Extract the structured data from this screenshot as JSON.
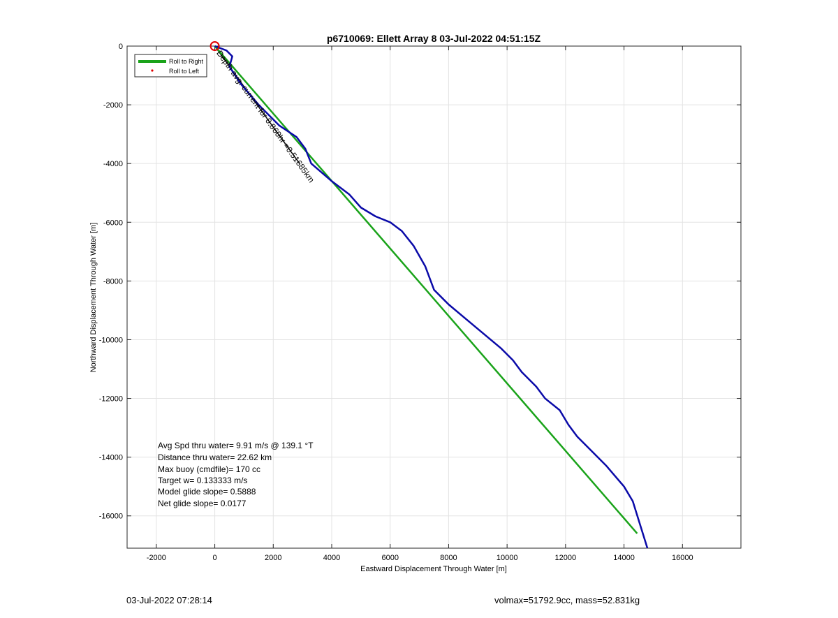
{
  "chart_data": {
    "type": "line",
    "title": "p6710069: Ellett Array 8 03-Jul-2022 04:51:15Z",
    "xlabel": "Eastward Displacement Through Water [m]",
    "ylabel": "Northward Displacement Through Water [m]",
    "xlim": [
      -3000,
      18000
    ],
    "ylim": [
      -17100,
      0
    ],
    "x_ticks": [
      -2000,
      0,
      2000,
      4000,
      6000,
      8000,
      10000,
      12000,
      14000,
      16000
    ],
    "y_ticks": [
      0,
      -2000,
      -4000,
      -6000,
      -8000,
      -10000,
      -12000,
      -14000,
      -16000
    ],
    "grid": true,
    "legend_position": "top-left",
    "legend": [
      {
        "label": "Roll to Right",
        "color": "#1aa31a",
        "style": "line"
      },
      {
        "label": "Roll to Left",
        "color": "#e00000",
        "style": "dot"
      }
    ],
    "series": [
      {
        "name": "Roll to Right",
        "color": "#1aa31a",
        "x": [
          0,
          14450
        ],
        "y": [
          0,
          -16600
        ]
      },
      {
        "color": "#0a0aa8",
        "x": [
          0,
          400,
          600,
          500,
          900,
          1500,
          2200,
          2800,
          3100,
          3300,
          4000,
          4400,
          4600,
          5000,
          5500,
          6000,
          6400,
          6800,
          7200,
          7500,
          8000,
          8600,
          9200,
          9800,
          10200,
          10500,
          11000,
          11300,
          11800,
          12100,
          12400,
          12900,
          13400,
          14000,
          14300,
          14800
        ],
        "y": [
          0,
          -150,
          -350,
          -700,
          -1300,
          -2000,
          -2700,
          -3100,
          -3500,
          -4000,
          -4600,
          -4900,
          -5050,
          -5500,
          -5800,
          -6000,
          -6300,
          -6800,
          -7500,
          -8300,
          -8800,
          -9300,
          -9800,
          -10300,
          -10700,
          -11100,
          -11600,
          -12000,
          -12400,
          -12900,
          -13300,
          -13800,
          -14300,
          -15000,
          -15500,
          -17100
        ]
      }
    ],
    "start_marker": {
      "x": 0,
      "y": 0,
      "color": "#e00000"
    },
    "depth_average_current": {
      "label": "Depth avg. current for 0.860hr =0.51685km",
      "color": "#000000",
      "x": [
        0,
        2900
      ],
      "y": [
        0,
        -4000
      ]
    },
    "annotations": [
      "Avg Spd thru water=  9.91 m/s @ 139.1 °T",
      "Distance thru water= 22.62 km",
      "Max buoy (cmdfile)= 170 cc",
      "Target w= 0.133333 m/s",
      "Model glide slope= 0.5888",
      "Net glide slope= 0.0177"
    ]
  },
  "footer": {
    "left": "03-Jul-2022 07:28:14",
    "right": "volmax=51792.9cc, mass=52.831kg"
  }
}
